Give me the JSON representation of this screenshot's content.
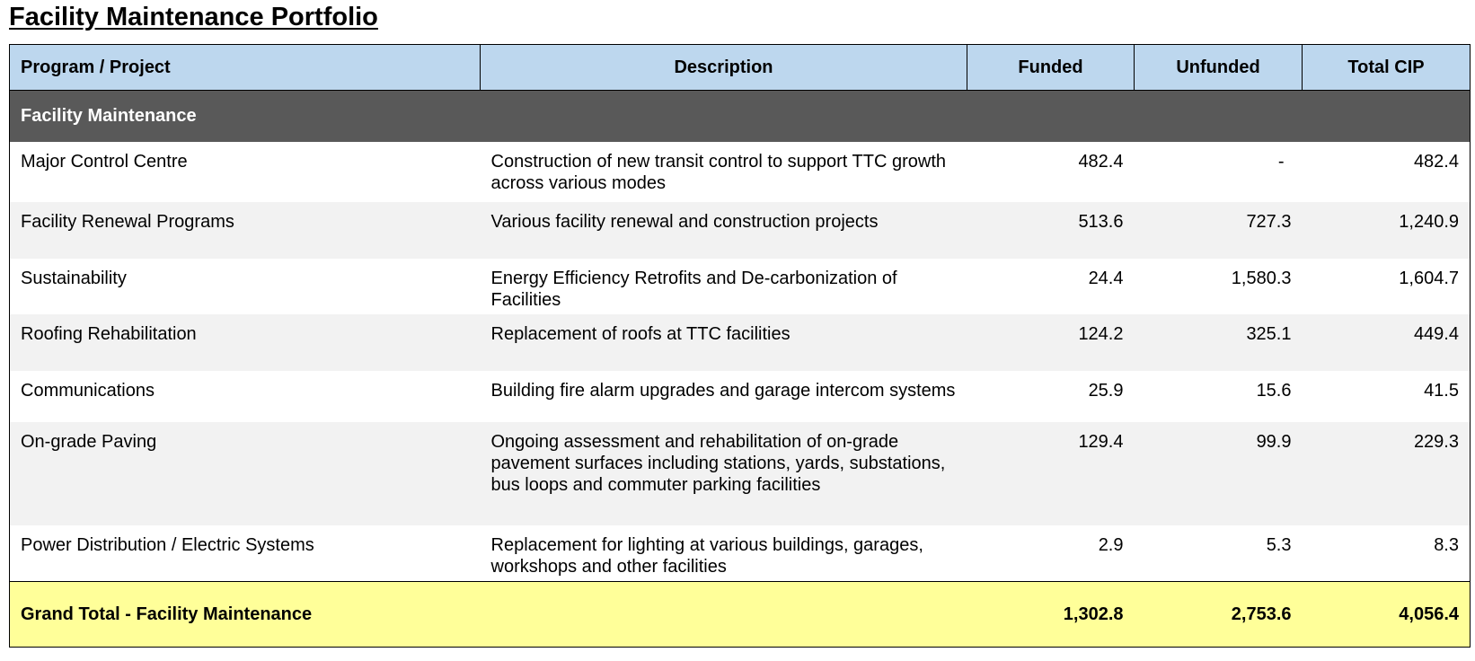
{
  "title": "Facility Maintenance Portfolio",
  "table": {
    "headers": [
      "Program / Project",
      "Description",
      "Funded",
      "Unfunded",
      "Total CIP"
    ],
    "section": "Facility Maintenance",
    "rows": [
      {
        "program": "Major Control Centre",
        "description": "Construction of new transit control to support TTC growth across various modes",
        "funded": "482.4",
        "unfunded": "-",
        "total": "482.4"
      },
      {
        "program": "Facility Renewal Programs",
        "description": "Various facility renewal and construction projects",
        "funded": "513.6",
        "unfunded": "727.3",
        "total": "1,240.9"
      },
      {
        "program": "Sustainability",
        "description": "Energy Efficiency Retrofits and De-carbonization of Facilities",
        "funded": "24.4",
        "unfunded": "1,580.3",
        "total": "1,604.7"
      },
      {
        "program": "Roofing Rehabilitation",
        "description": "Replacement of roofs at TTC facilities",
        "funded": "124.2",
        "unfunded": "325.1",
        "total": "449.4"
      },
      {
        "program": "Communications",
        "description": "Building fire alarm upgrades and garage intercom systems",
        "funded": "25.9",
        "unfunded": "15.6",
        "total": "41.5"
      },
      {
        "program": "On-grade Paving",
        "description": "Ongoing assessment and rehabilitation of on-grade pavement surfaces including stations, yards, substations, bus loops and commuter parking facilities",
        "funded": "129.4",
        "unfunded": "99.9",
        "total": "229.3"
      },
      {
        "program": "Power Distribution / Electric Systems",
        "description": "Replacement for lighting at various buildings, garages, workshops and other facilities",
        "funded": "2.9",
        "unfunded": "5.3",
        "total": "8.3"
      }
    ],
    "grand_total": {
      "label": "Grand Total - Facility Maintenance",
      "funded": "1,302.8",
      "unfunded": "2,753.6",
      "total": "4,056.4"
    }
  }
}
